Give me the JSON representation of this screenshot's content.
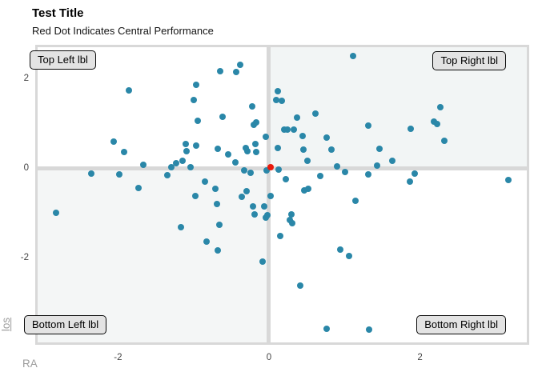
{
  "header": {
    "title": "Test Title",
    "subtitle": "Red Dot Indicates Central Performance"
  },
  "axes": {
    "x_label": "RA",
    "y_label": "los",
    "x_ticks": [
      -2,
      0,
      2
    ],
    "y_ticks": [
      2,
      0,
      -2
    ]
  },
  "quadrants": {
    "top_left": "Top Left lbl",
    "top_right": "Top Right lbl",
    "bottom_left": "Bottom Left lbl",
    "bottom_right": "Bottom Right lbl",
    "fills": {
      "top_left": "#ffffff",
      "top_right": "#f2f5f5",
      "bottom_left": "#f4f6f6",
      "bottom_right": "#ffffff"
    },
    "line_color": "#d8d8d8",
    "label_box_fill": "#e3e3e3",
    "label_box_border": "#0a0a0a"
  },
  "chart_data": {
    "type": "scatter",
    "title": "Test Title",
    "subtitle": "Red Dot Indicates Central Performance",
    "xlabel": "RA",
    "ylabel": "los",
    "xlim": [
      -3.065,
      3.415
    ],
    "ylim": [
      -3.875,
      2.714
    ],
    "x_ticks": [
      -2,
      0,
      2
    ],
    "y_ticks": [
      -2,
      0,
      2
    ],
    "grid": false,
    "legend": "none",
    "quadrant_lines": {
      "x": 0,
      "y": 0
    },
    "annotations": [
      {
        "text": "Top Left lbl",
        "position": "top-left"
      },
      {
        "text": "Top Right lbl",
        "position": "top-right"
      },
      {
        "text": "Bottom Left lbl",
        "position": "bottom-left"
      },
      {
        "text": "Bottom Right lbl",
        "position": "bottom-right"
      }
    ],
    "series": [
      {
        "name": "points",
        "color": "#2a87a8",
        "points": [
          [
            -1.86,
            1.75
          ],
          [
            -1.0,
            1.54
          ],
          [
            -0.96,
            1.87
          ],
          [
            -2.06,
            0.61
          ],
          [
            -1.92,
            0.37
          ],
          [
            -1.1,
            0.56
          ],
          [
            -1.09,
            0.4
          ],
          [
            -0.96,
            0.51
          ],
          [
            -1.66,
            0.09
          ],
          [
            -1.29,
            0.04
          ],
          [
            -1.23,
            0.12
          ],
          [
            -1.15,
            0.18
          ],
          [
            -1.04,
            0.03
          ],
          [
            -2.35,
            -0.11
          ],
          [
            -1.98,
            -0.12
          ],
          [
            -1.35,
            -0.15
          ],
          [
            -1.73,
            -0.42
          ],
          [
            -0.94,
            1.08
          ],
          [
            1.11,
            2.51
          ],
          [
            -0.38,
            2.33
          ],
          [
            -0.65,
            2.17
          ],
          [
            -0.44,
            2.16
          ],
          [
            0.12,
            1.74
          ],
          [
            0.1,
            1.54
          ],
          [
            0.17,
            1.51
          ],
          [
            -0.22,
            1.4
          ],
          [
            0.37,
            1.15
          ],
          [
            0.62,
            1.23
          ],
          [
            -0.62,
            1.16
          ],
          [
            -0.2,
            0.99
          ],
          [
            -0.17,
            1.04
          ],
          [
            0.2,
            0.87
          ],
          [
            0.24,
            0.87
          ],
          [
            0.33,
            0.87
          ],
          [
            -0.04,
            0.71
          ],
          [
            0.45,
            0.74
          ],
          [
            0.76,
            0.7
          ],
          [
            -0.18,
            0.56
          ],
          [
            0.12,
            0.47
          ],
          [
            -0.68,
            0.44
          ],
          [
            -0.31,
            0.46
          ],
          [
            -0.29,
            0.39
          ],
          [
            -0.17,
            0.37
          ],
          [
            -0.54,
            0.32
          ],
          [
            0.46,
            0.43
          ],
          [
            0.83,
            0.42
          ],
          [
            0.51,
            0.18
          ],
          [
            -0.45,
            0.14
          ],
          [
            0.9,
            0.06
          ],
          [
            0.13,
            -0.01
          ],
          [
            -0.33,
            -0.04
          ],
          [
            -0.24,
            -0.09
          ],
          [
            1.01,
            -0.08
          ],
          [
            0.22,
            -0.23
          ],
          [
            0.68,
            -0.16
          ],
          [
            -0.85,
            -0.29
          ],
          [
            -0.71,
            -0.45
          ],
          [
            -0.3,
            -0.5
          ],
          [
            0.47,
            -0.49
          ],
          [
            0.52,
            -0.45
          ],
          [
            -0.03,
            -0.03
          ],
          [
            2.27,
            1.37
          ],
          [
            2.18,
            1.05
          ],
          [
            2.23,
            1.0
          ],
          [
            1.88,
            0.89
          ],
          [
            1.32,
            0.97
          ],
          [
            2.32,
            0.63
          ],
          [
            1.46,
            0.44
          ],
          [
            1.63,
            0.18
          ],
          [
            1.43,
            0.08
          ],
          [
            1.32,
            -0.13
          ],
          [
            1.93,
            -0.11
          ],
          [
            1.87,
            -0.29
          ],
          [
            3.17,
            -0.25
          ],
          [
            -2.82,
            -0.98
          ],
          [
            -1.17,
            -1.3
          ],
          [
            -0.98,
            -0.61
          ],
          [
            -0.36,
            -0.63
          ],
          [
            0.02,
            -0.61
          ],
          [
            -0.69,
            -0.78
          ],
          [
            -0.21,
            -0.84
          ],
          [
            -0.06,
            -0.84
          ],
          [
            -0.19,
            -1.02
          ],
          [
            -0.04,
            -1.09
          ],
          [
            -0.02,
            -1.03
          ],
          [
            -0.66,
            -1.25
          ],
          [
            -0.83,
            -1.62
          ],
          [
            -0.68,
            -1.82
          ],
          [
            -0.09,
            -2.07
          ],
          [
            0.15,
            -1.5
          ],
          [
            0.3,
            -1.01
          ],
          [
            0.28,
            -1.14
          ],
          [
            0.31,
            -1.21
          ],
          [
            1.15,
            -0.72
          ],
          [
            0.94,
            -1.81
          ],
          [
            1.06,
            -1.94
          ],
          [
            0.41,
            -2.61
          ],
          [
            0.76,
            -3.57
          ],
          [
            1.33,
            -3.59
          ]
        ]
      },
      {
        "name": "central",
        "color": "#e9190b",
        "points": [
          [
            0.02,
            0.03
          ]
        ]
      }
    ]
  }
}
